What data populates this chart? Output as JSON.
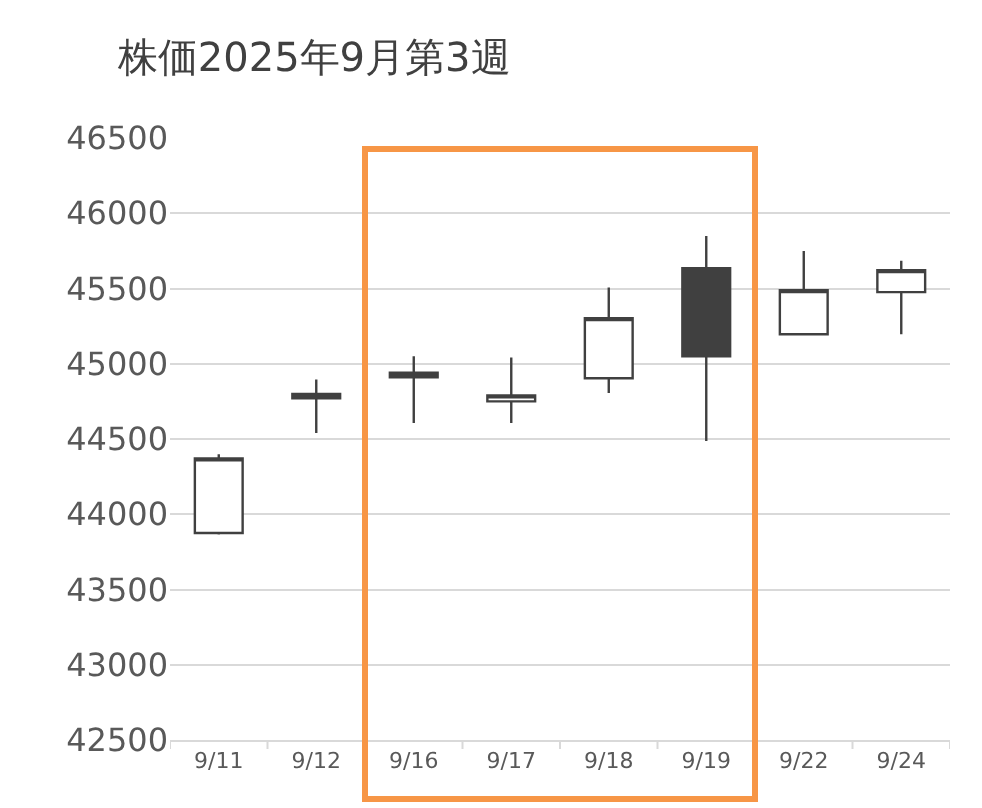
{
  "chart_data": {
    "type": "candlestick",
    "title": "株価2025年9月第3週",
    "categories": [
      "9/11",
      "9/12",
      "9/16",
      "9/17",
      "9/18",
      "9/19",
      "9/22",
      "9/24"
    ],
    "ohlc": [
      [
        43875,
        44398,
        43866,
        44371
      ],
      [
        44800,
        44895,
        44540,
        44770
      ],
      [
        44940,
        45050,
        44607,
        44910
      ],
      [
        44750,
        45041,
        44607,
        44790
      ],
      [
        44904,
        45507,
        44806,
        45303
      ],
      [
        45635,
        45848,
        44487,
        45050
      ],
      [
        45196,
        45750,
        45196,
        45489
      ],
      [
        45476,
        45684,
        45196,
        45622
      ]
    ],
    "color": "#404040",
    "ylim": [
      42500,
      46500
    ],
    "yticks": [
      42500,
      43000,
      43500,
      44000,
      44500,
      45000,
      45500,
      46000,
      46500
    ],
    "grid": "y"
  }
}
